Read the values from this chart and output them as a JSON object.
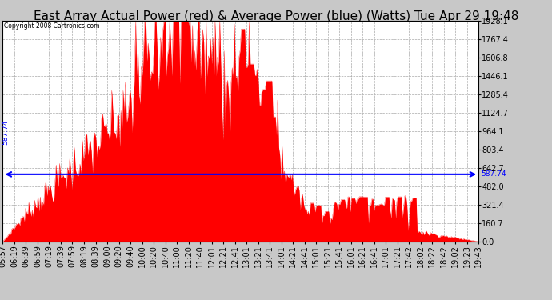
{
  "title": "East Array Actual Power (red) & Average Power (blue) (Watts) Tue Apr 29 19:48",
  "copyright": "Copyright 2008 Cartronics.com",
  "avg_value": 587.74,
  "y_max": 1928.1,
  "y_ticks": [
    0.0,
    160.7,
    321.4,
    482.0,
    642.7,
    803.4,
    964.1,
    1124.7,
    1285.4,
    1446.1,
    1606.8,
    1767.4,
    1928.1
  ],
  "background_color": "#c8c8c8",
  "plot_bg_color": "#ffffff",
  "fill_color": "#ff0000",
  "avg_line_color": "#0000ff",
  "title_fontsize": 11,
  "tick_label_fontsize": 7,
  "x_labels": [
    "05:57",
    "06:19",
    "06:39",
    "06:59",
    "07:19",
    "07:39",
    "07:59",
    "08:19",
    "08:39",
    "09:00",
    "09:20",
    "09:40",
    "10:00",
    "10:20",
    "10:40",
    "11:00",
    "11:20",
    "11:40",
    "12:01",
    "12:21",
    "12:41",
    "13:01",
    "13:21",
    "13:41",
    "14:01",
    "14:21",
    "14:41",
    "15:01",
    "15:21",
    "15:41",
    "16:01",
    "16:21",
    "16:41",
    "17:01",
    "17:21",
    "17:42",
    "18:02",
    "18:22",
    "18:42",
    "19:02",
    "19:23",
    "19:43"
  ],
  "num_points": 420
}
